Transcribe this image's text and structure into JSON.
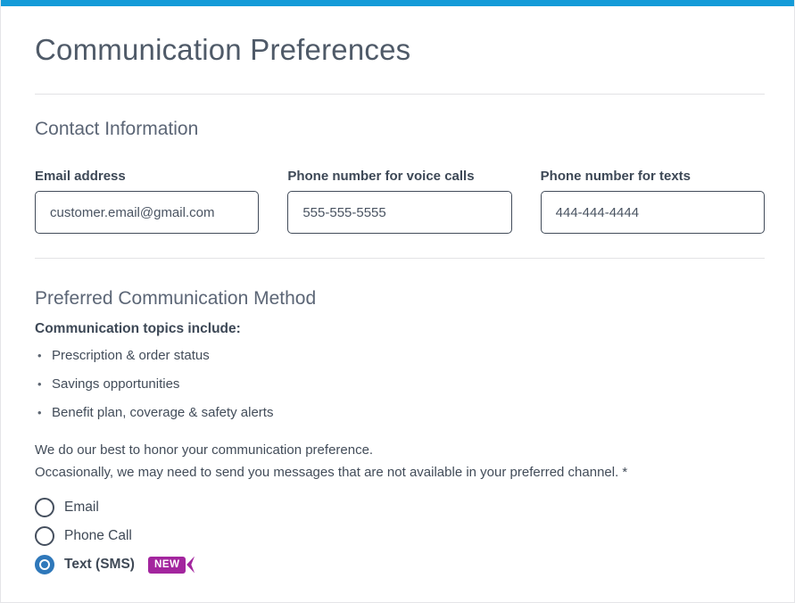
{
  "page": {
    "title": "Communication Preferences"
  },
  "colors": {
    "top_bar_blue": "#149bd8",
    "radio_selected_blue": "#2f78ba",
    "badge_purple": "#a3259e",
    "input_border": "#424c5a",
    "divider": "#e3e3e5"
  },
  "contact": {
    "heading": "Contact Information",
    "fields": [
      {
        "label": "Email address",
        "value": "customer.email@gmail.com"
      },
      {
        "label": "Phone number for voice calls",
        "value": "555-555-5555"
      },
      {
        "label": "Phone number for texts",
        "value": "444-444-4444"
      }
    ]
  },
  "preferences": {
    "heading": "Preferred Communication Method",
    "topics_heading": "Communication topics include:",
    "topics": [
      "Prescription & order status",
      "Savings opportunities",
      "Benefit plan, coverage & safety alerts"
    ],
    "note_line1": "We do our best to honor your communication preference.",
    "note_line2": "Occasionally, we may need to send you messages that are not available in your preferred channel. *",
    "options": [
      {
        "label": "Email",
        "selected": false,
        "badge": null
      },
      {
        "label": "Phone Call",
        "selected": false,
        "badge": null
      },
      {
        "label": "Text (SMS)",
        "selected": true,
        "badge": "NEW"
      }
    ]
  }
}
